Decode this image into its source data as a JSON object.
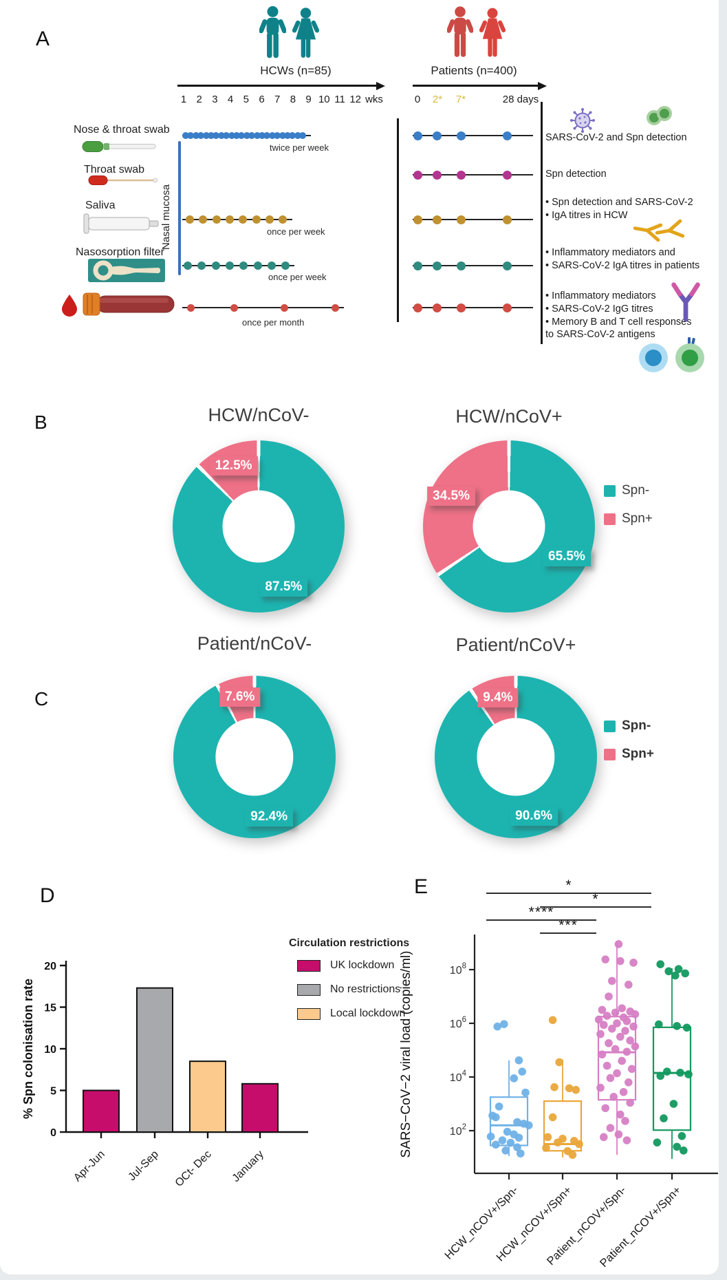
{
  "panels": {
    "a": "A",
    "b": "B",
    "c": "C",
    "d": "D",
    "e": "E"
  },
  "panel_a": {
    "hcw_label": "HCWs (n=85)",
    "weeks": [
      "1",
      "2",
      "3",
      "4",
      "5",
      "6",
      "7",
      "8",
      "9",
      "10",
      "11",
      "12"
    ],
    "weeks_unit": "wks",
    "patients_label": "Patients (n=400)",
    "patient_ticks": [
      {
        "text": "0",
        "color": "#1b1b1b"
      },
      {
        "text": "2*",
        "color": "#d8b93c"
      },
      {
        "text": "7*",
        "color": "#d8b93c"
      },
      {
        "text": "28 days",
        "color": "#1b1b1b"
      }
    ],
    "samples": [
      "Nose & throat swab",
      "Throat swab",
      "Saliva",
      "Nasosorption filter"
    ],
    "nasal_mucosa": "Nasal mucosa",
    "rows": [
      {
        "color": "#3b7ec8",
        "freq": "twice per week"
      },
      {
        "color": "#b23590",
        "freq": ""
      },
      {
        "color": "#bf9130",
        "freq": "once per week"
      },
      {
        "color": "#2f8b7f",
        "freq": "once per week"
      },
      {
        "color": "#d14c44",
        "freq": "once per month"
      }
    ],
    "annotations": [
      [
        "SARS-CoV-2  and Spn detection"
      ],
      [
        "Spn detection"
      ],
      [
        "• Spn detection and SARS-CoV-2",
        "• IgA titres in HCW"
      ],
      [
        "• Inflammatory mediators and",
        "• SARS-CoV-2 IgA titres in patients"
      ],
      [
        "• Inflammatory mediators",
        "• SARS-CoV-2 IgG titres",
        "• Memory B and T cell responses",
        "to SARS-CoV-2 antigens"
      ]
    ],
    "icon_colors": {
      "hcw": "#0f8289",
      "patient": "#cc4a45",
      "virus": "#7b6fc4",
      "bacteria": "#4f9f4e",
      "antibody_gold": "#e3a41c",
      "antibody_purple": "#6a58b5",
      "b_cell": "#2b8ec6",
      "t_cell": "#2f9e44"
    }
  },
  "chart_data": [
    {
      "type": "pie",
      "donut": true,
      "id": "hcw_ncov_neg",
      "title": "HCW/nCoV-",
      "labels": [
        "Spn-",
        "Spn+"
      ],
      "values": [
        87.5,
        12.5
      ],
      "value_labels": [
        "87.5%",
        "12.5%"
      ],
      "colors": [
        "#1db4b0",
        "#ee7187"
      ]
    },
    {
      "type": "pie",
      "donut": true,
      "id": "hcw_ncov_pos",
      "title": "HCW/nCoV+",
      "labels": [
        "Spn-",
        "Spn+"
      ],
      "values": [
        65.5,
        34.5
      ],
      "value_labels": [
        "65.5%",
        "34.5%"
      ],
      "colors": [
        "#1db4b0",
        "#ee7187"
      ],
      "legend_position": "right"
    },
    {
      "type": "pie",
      "donut": true,
      "id": "patient_ncov_neg",
      "title": "Patient/nCoV-",
      "labels": [
        "Spn-",
        "Spn+"
      ],
      "values": [
        92.4,
        7.6
      ],
      "value_labels": [
        "92.4%",
        "7.6%"
      ],
      "colors": [
        "#1db4b0",
        "#ee7187"
      ]
    },
    {
      "type": "pie",
      "donut": true,
      "id": "patient_ncov_pos",
      "title": "Patient/nCoV+",
      "labels": [
        "Spn-",
        "Spn+"
      ],
      "values": [
        90.6,
        9.4
      ],
      "value_labels": [
        "90.6%",
        "9.4%"
      ],
      "colors": [
        "#1db4b0",
        "#ee7187"
      ],
      "legend_position": "right"
    },
    {
      "type": "bar",
      "id": "spn_colonisation",
      "ylabel": "% Spn colonisation rate",
      "categories": [
        "Apr-Jun",
        "Jul-Sep",
        "OCt- Dec",
        "January"
      ],
      "values": [
        5.0,
        17.3,
        8.5,
        5.8
      ],
      "bar_groups": [
        "UK lockdown",
        "No restrictions",
        "Local lockdown",
        "UK lockdown"
      ],
      "yticks": [
        0,
        5,
        10,
        15,
        20
      ],
      "ylim": [
        0,
        20
      ],
      "legend_title": "Circulation restrictions",
      "legend": [
        {
          "label": "UK lockdown",
          "color": "#c60d6c"
        },
        {
          "label": "No restrictions",
          "color": "#a7a9ac"
        },
        {
          "label": "Local lockdown",
          "color": "#fcca8d"
        }
      ]
    },
    {
      "type": "box",
      "id": "viral_load",
      "scale": "log10",
      "ylabel": "SARS−CoV−2 viral load (copies/ml)",
      "yticks_exponents": [
        2,
        4,
        6,
        8
      ],
      "categories": [
        "HCW_nCOV+/Spn-",
        "HCW_nCOV+/Spn+",
        "Patient_nCOV+/Spn-",
        "Patient_nCOV+/Spn+"
      ],
      "colors": [
        "#6fb1e7",
        "#eaa63a",
        "#d67fc4",
        "#12995f"
      ],
      "boxes": [
        {
          "lo": 1.05,
          "q1": 1.45,
          "med": 2.2,
          "q3": 3.25,
          "hi": 4.62
        },
        {
          "lo": 1.0,
          "q1": 1.25,
          "med": 1.5,
          "q3": 3.1,
          "hi": 4.65
        },
        {
          "lo": 1.1,
          "q1": 3.15,
          "med": 4.92,
          "q3": 6.25,
          "hi": 9.05
        },
        {
          "lo": 0.95,
          "q1": 2.02,
          "med": 4.15,
          "q3": 5.85,
          "hi": 8.05
        }
      ],
      "points_log10": [
        [
          5.97,
          5.88,
          4.62,
          4.2,
          3.95,
          3.42,
          2.9,
          2.56,
          2.5,
          2.32,
          2.26,
          2.2,
          1.96,
          1.86,
          1.78,
          1.74,
          1.64,
          1.55,
          1.48,
          1.38,
          1.26,
          1.15
        ],
        [
          6.12,
          4.55,
          3.62,
          3.58,
          3.52,
          2.5,
          1.76,
          1.7,
          1.62,
          1.56,
          1.5,
          1.36,
          1.24,
          1.1
        ],
        [
          8.95,
          8.38,
          8.32,
          8.26,
          7.58,
          7.44,
          7.0,
          6.56,
          6.5,
          6.44,
          6.4,
          6.34,
          6.28,
          6.22,
          6.14,
          6.08,
          6.0,
          5.94,
          5.88,
          5.8,
          5.72,
          5.6,
          5.5,
          5.36,
          5.26,
          5.14,
          5.04,
          4.94,
          4.84,
          4.6,
          4.42,
          4.3,
          4.14,
          3.96,
          3.8,
          3.6,
          3.44,
          3.26,
          3.04,
          2.84,
          2.6,
          2.36,
          2.1,
          1.86,
          1.76,
          1.64
        ],
        [
          8.2,
          8.02,
          7.94,
          7.86,
          7.78,
          5.96,
          5.9,
          5.84,
          4.2,
          4.16,
          4.1,
          4.04,
          3.0,
          2.46,
          1.8,
          1.56,
          1.4,
          1.26
        ]
      ],
      "points_jitter": [
        [
          -0.06,
          -0.14,
          0.12,
          0.16,
          0.06,
          0.2,
          -0.12,
          -0.2,
          -0.16,
          0.1,
          0.18,
          0.24,
          -0.02,
          0.06,
          -0.22,
          0.12,
          -0.08,
          0.02,
          -0.16,
          0.1,
          -0.04,
          0.14
        ],
        [
          -0.12,
          -0.04,
          -0.1,
          0.08,
          0.16,
          -0.12,
          -0.18,
          0.0,
          0.14,
          -0.06,
          0.2,
          -0.2,
          0.06,
          0.12
        ],
        [
          0.02,
          -0.14,
          0.04,
          0.2,
          -0.06,
          0.14,
          -0.1,
          0.06,
          -0.18,
          0.16,
          -0.02,
          0.22,
          -0.12,
          0.08,
          -0.22,
          0.12,
          0.0,
          -0.16,
          0.2,
          -0.06,
          0.1,
          -0.2,
          0.04,
          0.16,
          -0.1,
          0.22,
          -0.02,
          0.12,
          -0.18,
          0.06,
          -0.12,
          0.18,
          0.0,
          -0.08,
          0.14,
          -0.2,
          0.08,
          -0.04,
          0.16,
          -0.14,
          0.04,
          0.1,
          -0.08,
          0.02,
          -0.16,
          0.12
        ],
        [
          -0.14,
          0.08,
          -0.04,
          0.16,
          0.04,
          -0.16,
          0.06,
          0.18,
          -0.06,
          0.1,
          0.2,
          -0.14,
          0.02,
          -0.1,
          0.12,
          -0.18,
          0.06,
          0.14
        ]
      ],
      "significance": [
        {
          "a": 0,
          "b": 3,
          "label": "*"
        },
        {
          "a": 1,
          "b": 3,
          "label": "*"
        },
        {
          "a": 0,
          "b": 2,
          "label": "****"
        },
        {
          "a": 1,
          "b": 2,
          "label": "***"
        }
      ]
    }
  ]
}
